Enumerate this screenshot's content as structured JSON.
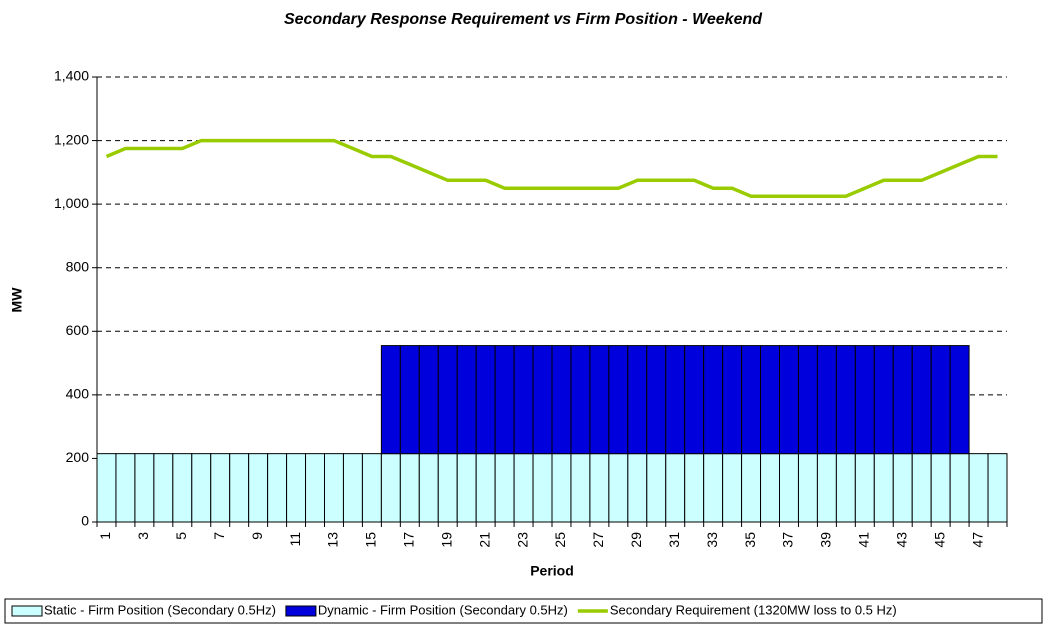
{
  "chart_data": {
    "type": "stacked-bar-line",
    "title": "Secondary Response Requirement vs Firm Position - Weekend",
    "x_label": "Period",
    "y_label": "MW",
    "categories": [
      "1",
      null,
      "3",
      null,
      "5",
      null,
      "7",
      null,
      "9",
      null,
      "11",
      null,
      "13",
      null,
      "15",
      null,
      "17",
      null,
      "19",
      null,
      "21",
      null,
      "23",
      null,
      "25",
      null,
      "27",
      null,
      "29",
      null,
      "31",
      null,
      "33",
      null,
      "35",
      null,
      "37",
      null,
      "39",
      null,
      "41",
      null,
      "43",
      null,
      "45",
      null,
      "47",
      null
    ],
    "series": [
      {
        "name": "Static - Firm Position (Secondary 0.5Hz)",
        "type": "bar",
        "color": "#ccffff",
        "values": [
          215,
          215,
          215,
          215,
          215,
          215,
          215,
          215,
          215,
          215,
          215,
          215,
          215,
          215,
          215,
          215,
          215,
          215,
          215,
          215,
          215,
          215,
          215,
          215,
          215,
          215,
          215,
          215,
          215,
          215,
          215,
          215,
          215,
          215,
          215,
          215,
          215,
          215,
          215,
          215,
          215,
          215,
          215,
          215,
          215,
          215,
          215,
          215
        ]
      },
      {
        "name": "Dynamic - Firm Position (Secondary 0.5Hz)",
        "type": "bar",
        "color": "#0000dd",
        "values": [
          null,
          null,
          null,
          null,
          null,
          null,
          null,
          null,
          null,
          null,
          null,
          null,
          null,
          null,
          null,
          340,
          340,
          340,
          340,
          340,
          340,
          340,
          340,
          340,
          340,
          340,
          340,
          340,
          340,
          340,
          340,
          340,
          340,
          340,
          340,
          340,
          340,
          340,
          340,
          340,
          340,
          340,
          340,
          340,
          340,
          340,
          null,
          null
        ]
      },
      {
        "name": "Secondary Requirement (1320MW loss to 0.5 Hz)",
        "type": "line",
        "color": "#99cc00",
        "values": [
          1150,
          1175,
          1175,
          1175,
          1175,
          1200,
          1200,
          1200,
          1200,
          1200,
          1200,
          1200,
          1200,
          1175,
          1150,
          1150,
          1125,
          1100,
          1075,
          1075,
          1075,
          1050,
          1050,
          1050,
          1050,
          1050,
          1050,
          1050,
          1075,
          1075,
          1075,
          1075,
          1050,
          1050,
          1025,
          1025,
          1025,
          1025,
          1025,
          1025,
          1050,
          1075,
          1075,
          1075,
          1100,
          1125,
          1150,
          1150
        ]
      }
    ],
    "ylim": [
      0,
      1400
    ],
    "yticks": [
      0,
      200,
      400,
      600,
      800,
      {
        "value": 1000,
        "label": "1,000"
      },
      {
        "value": 1200,
        "label": "1,200"
      },
      {
        "value": 1400,
        "label": "1,400"
      }
    ],
    "grid": true,
    "legend": "bottom"
  }
}
